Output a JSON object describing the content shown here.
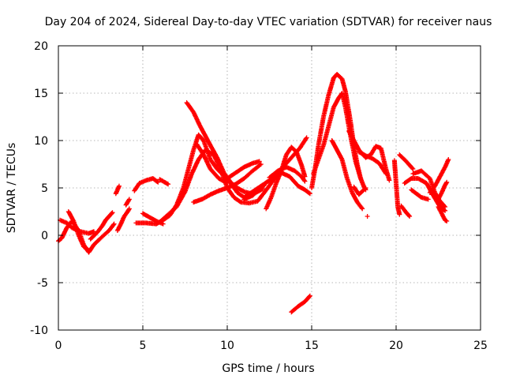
{
  "chart_data": {
    "type": "scatter",
    "title": "Day 204 of 2024, Sidereal Day-to-day VTEC variation (SDTVAR) for receiver naus",
    "xlabel": "GPS time / hours",
    "ylabel": "SDTVAR / TECUs",
    "xlim": [
      0,
      25
    ],
    "ylim": [
      -10,
      20
    ],
    "xticks": [
      0,
      5,
      10,
      15,
      20,
      25
    ],
    "yticks": [
      -10,
      -5,
      0,
      5,
      10,
      15,
      20
    ],
    "grid": true,
    "marker": "+",
    "color": "#ff0000",
    "series": [
      {
        "name": "SDTVAR traces",
        "tracks": [
          [
            [
              0.0,
              -0.6
            ],
            [
              0.2,
              -0.3
            ],
            [
              0.5,
              0.8
            ],
            [
              0.8,
              1.5
            ],
            [
              1.2,
              0.5
            ],
            [
              1.5,
              -1.0
            ],
            [
              1.8,
              -1.8
            ],
            [
              2.1,
              -1.0
            ],
            [
              2.5,
              -0.3
            ],
            [
              3.0,
              0.5
            ],
            [
              3.3,
              1.2
            ]
          ],
          [
            [
              0.1,
              1.6
            ],
            [
              0.5,
              1.3
            ],
            [
              0.8,
              0.8
            ],
            [
              1.3,
              0.4
            ],
            [
              1.8,
              0.2
            ],
            [
              2.1,
              0.4
            ]
          ],
          [
            [
              0.6,
              2.5
            ],
            [
              0.9,
              1.5
            ],
            [
              1.2,
              0.0
            ],
            [
              1.5,
              -1.2
            ],
            [
              1.8,
              -1.6
            ]
          ],
          [
            [
              1.9,
              -0.4
            ],
            [
              2.3,
              0.3
            ],
            [
              2.6,
              1.0
            ],
            [
              2.8,
              1.6
            ],
            [
              3.1,
              2.2
            ],
            [
              3.2,
              2.4
            ]
          ],
          [
            [
              3.5,
              0.5
            ],
            [
              3.7,
              1.2
            ],
            [
              3.9,
              2.0
            ],
            [
              4.1,
              2.5
            ],
            [
              4.2,
              2.8
            ]
          ],
          [
            [
              3.4,
              4.4
            ],
            [
              3.6,
              5.2
            ]
          ],
          [
            [
              4.0,
              3.2
            ],
            [
              4.2,
              3.8
            ]
          ],
          [
            [
              4.5,
              4.7
            ],
            [
              4.8,
              5.5
            ],
            [
              5.2,
              5.8
            ],
            [
              5.6,
              6.0
            ],
            [
              5.9,
              5.6
            ]
          ],
          [
            [
              6.0,
              5.9
            ],
            [
              6.5,
              5.4
            ]
          ],
          [
            [
              4.6,
              1.3
            ],
            [
              5.2,
              1.3
            ],
            [
              5.8,
              1.2
            ],
            [
              6.2,
              1.6
            ],
            [
              6.6,
              2.1
            ],
            [
              7.0,
              3.2
            ],
            [
              7.4,
              5.0
            ],
            [
              7.7,
              7.0
            ],
            [
              8.0,
              9.0
            ],
            [
              8.3,
              10.6
            ],
            [
              8.6,
              10.0
            ],
            [
              9.0,
              8.0
            ],
            [
              9.4,
              7.0
            ],
            [
              9.8,
              6.3
            ],
            [
              10.2,
              5.5
            ],
            [
              10.6,
              4.5
            ],
            [
              11.0,
              4.0
            ],
            [
              11.5,
              4.6
            ],
            [
              12.0,
              5.2
            ],
            [
              12.5,
              5.8
            ],
            [
              12.9,
              6.4
            ],
            [
              13.3,
              7.2
            ],
            [
              13.8,
              8.2
            ],
            [
              14.3,
              9.2
            ],
            [
              14.7,
              10.3
            ]
          ],
          [
            [
              5.0,
              2.3
            ],
            [
              5.4,
              1.9
            ],
            [
              5.8,
              1.5
            ],
            [
              6.2,
              1.2
            ]
          ],
          [
            [
              6.0,
              1.4
            ],
            [
              6.5,
              2.2
            ],
            [
              7.0,
              3.0
            ],
            [
              7.5,
              4.6
            ],
            [
              7.9,
              6.5
            ],
            [
              8.3,
              8.0
            ],
            [
              8.7,
              9.0
            ],
            [
              9.2,
              8.5
            ],
            [
              9.6,
              7.0
            ],
            [
              10.0,
              5.0
            ],
            [
              10.4,
              4.0
            ],
            [
              10.8,
              3.5
            ],
            [
              11.3,
              3.4
            ],
            [
              11.8,
              3.6
            ],
            [
              12.4,
              5.0
            ],
            [
              12.8,
              6.0
            ],
            [
              13.2,
              6.6
            ],
            [
              13.7,
              6.2
            ],
            [
              14.2,
              5.2
            ],
            [
              14.6,
              4.8
            ],
            [
              14.9,
              4.4
            ]
          ],
          [
            [
              7.6,
              14.0
            ],
            [
              8.0,
              13.0
            ],
            [
              8.4,
              11.5
            ],
            [
              8.7,
              10.5
            ],
            [
              9.0,
              9.5
            ],
            [
              9.4,
              8.2
            ],
            [
              9.8,
              6.6
            ],
            [
              10.2,
              5.6
            ],
            [
              10.6,
              5.0
            ],
            [
              11.0,
              4.6
            ],
            [
              11.4,
              4.4
            ],
            [
              11.8,
              4.6
            ],
            [
              12.1,
              4.9
            ]
          ],
          [
            [
              8.2,
              9.6
            ],
            [
              8.6,
              8.5
            ],
            [
              9.0,
              7.0
            ],
            [
              9.5,
              6.0
            ],
            [
              10.0,
              5.5
            ]
          ],
          [
            [
              8.0,
              3.5
            ],
            [
              8.5,
              3.8
            ],
            [
              9.0,
              4.3
            ],
            [
              9.5,
              4.7
            ],
            [
              10.0,
              5.0
            ],
            [
              10.5,
              5.4
            ],
            [
              11.0,
              6.0
            ],
            [
              11.5,
              6.8
            ],
            [
              12.0,
              7.5
            ]
          ],
          [
            [
              10.0,
              6.0
            ],
            [
              10.5,
              6.6
            ],
            [
              11.0,
              7.2
            ],
            [
              11.5,
              7.6
            ],
            [
              11.9,
              7.8
            ]
          ],
          [
            [
              11.0,
              3.8
            ],
            [
              11.5,
              4.2
            ],
            [
              11.9,
              4.8
            ],
            [
              12.2,
              5.3
            ]
          ],
          [
            [
              12.3,
              2.8
            ],
            [
              12.6,
              4.0
            ],
            [
              12.9,
              5.5
            ],
            [
              13.2,
              6.8
            ],
            [
              13.5,
              8.5
            ],
            [
              13.8,
              9.3
            ],
            [
              14.1,
              8.8
            ],
            [
              14.4,
              7.4
            ],
            [
              14.6,
              6.2
            ]
          ],
          [
            [
              12.5,
              6.1
            ],
            [
              13.0,
              6.8
            ],
            [
              13.5,
              7.2
            ],
            [
              14.0,
              6.8
            ],
            [
              14.4,
              6.2
            ],
            [
              14.6,
              5.7
            ]
          ],
          [
            [
              13.8,
              -8.1
            ],
            [
              14.2,
              -7.5
            ],
            [
              14.6,
              -7.0
            ],
            [
              14.9,
              -6.4
            ]
          ],
          [
            [
              15.0,
              5.0
            ],
            [
              15.2,
              7.0
            ],
            [
              15.4,
              9.5
            ],
            [
              15.7,
              12.5
            ],
            [
              16.0,
              14.8
            ],
            [
              16.3,
              16.6
            ],
            [
              16.5,
              17.0
            ],
            [
              16.8,
              16.5
            ],
            [
              17.0,
              15.2
            ],
            [
              17.3,
              12.0
            ],
            [
              17.5,
              9.5
            ],
            [
              17.7,
              7.5
            ],
            [
              17.9,
              6.0
            ]
          ],
          [
            [
              15.1,
              6.5
            ],
            [
              15.4,
              8.0
            ],
            [
              15.7,
              9.5
            ],
            [
              16.0,
              11.5
            ],
            [
              16.3,
              13.5
            ],
            [
              16.6,
              14.5
            ],
            [
              16.8,
              15.0
            ],
            [
              17.0,
              13.5
            ],
            [
              17.3,
              10.5
            ],
            [
              17.6,
              7.8
            ],
            [
              17.9,
              6.0
            ],
            [
              18.1,
              5.1
            ],
            [
              18.2,
              4.8
            ]
          ],
          [
            [
              16.2,
              10.0
            ],
            [
              16.5,
              9.0
            ],
            [
              16.8,
              8.0
            ],
            [
              17.1,
              6.0
            ],
            [
              17.4,
              4.5
            ],
            [
              17.7,
              3.5
            ],
            [
              18.0,
              2.8
            ]
          ],
          [
            [
              17.5,
              5.1
            ],
            [
              17.8,
              4.3
            ],
            [
              18.2,
              5.0
            ]
          ],
          [
            [
              17.2,
              11.0
            ],
            [
              17.5,
              10.0
            ],
            [
              17.8,
              9.0
            ],
            [
              18.2,
              8.2
            ],
            [
              18.5,
              8.5
            ],
            [
              18.8,
              9.4
            ],
            [
              19.1,
              9.2
            ],
            [
              19.4,
              7.0
            ],
            [
              19.6,
              5.8
            ]
          ],
          [
            [
              17.8,
              8.8
            ],
            [
              18.2,
              8.4
            ],
            [
              18.6,
              8.1
            ],
            [
              19.0,
              7.6
            ],
            [
              19.4,
              6.5
            ]
          ],
          [
            [
              18.3,
              2.0
            ]
          ],
          [
            [
              19.9,
              7.9
            ],
            [
              20.0,
              5.5
            ],
            [
              20.1,
              3.0
            ],
            [
              20.2,
              2.2
            ]
          ],
          [
            [
              20.2,
              8.5
            ],
            [
              20.6,
              7.8
            ],
            [
              21.0,
              7.0
            ]
          ],
          [
            [
              20.5,
              5.5
            ],
            [
              20.9,
              6.0
            ],
            [
              21.3,
              6.0
            ],
            [
              21.8,
              5.5
            ],
            [
              22.2,
              4.2
            ],
            [
              22.6,
              3.0
            ],
            [
              22.9,
              2.6
            ]
          ],
          [
            [
              20.3,
              3.1
            ],
            [
              20.6,
              2.4
            ],
            [
              20.8,
              2.0
            ]
          ],
          [
            [
              20.9,
              4.8
            ],
            [
              21.2,
              4.4
            ],
            [
              21.5,
              4.0
            ],
            [
              21.9,
              3.8
            ]
          ],
          [
            [
              21.0,
              6.5
            ],
            [
              21.5,
              6.8
            ],
            [
              22.0,
              6.0
            ],
            [
              22.3,
              4.5
            ],
            [
              22.6,
              3.6
            ],
            [
              22.9,
              3.0
            ]
          ],
          [
            [
              22.0,
              4.5
            ],
            [
              22.3,
              5.2
            ],
            [
              22.6,
              6.2
            ],
            [
              22.9,
              7.2
            ],
            [
              23.1,
              8.0
            ]
          ],
          [
            [
              22.5,
              3.8
            ],
            [
              22.7,
              4.5
            ],
            [
              22.9,
              5.3
            ],
            [
              23.0,
              5.6
            ]
          ],
          [
            [
              22.5,
              3.0
            ],
            [
              22.9,
              1.6
            ],
            [
              23.0,
              1.5
            ]
          ]
        ]
      }
    ]
  }
}
